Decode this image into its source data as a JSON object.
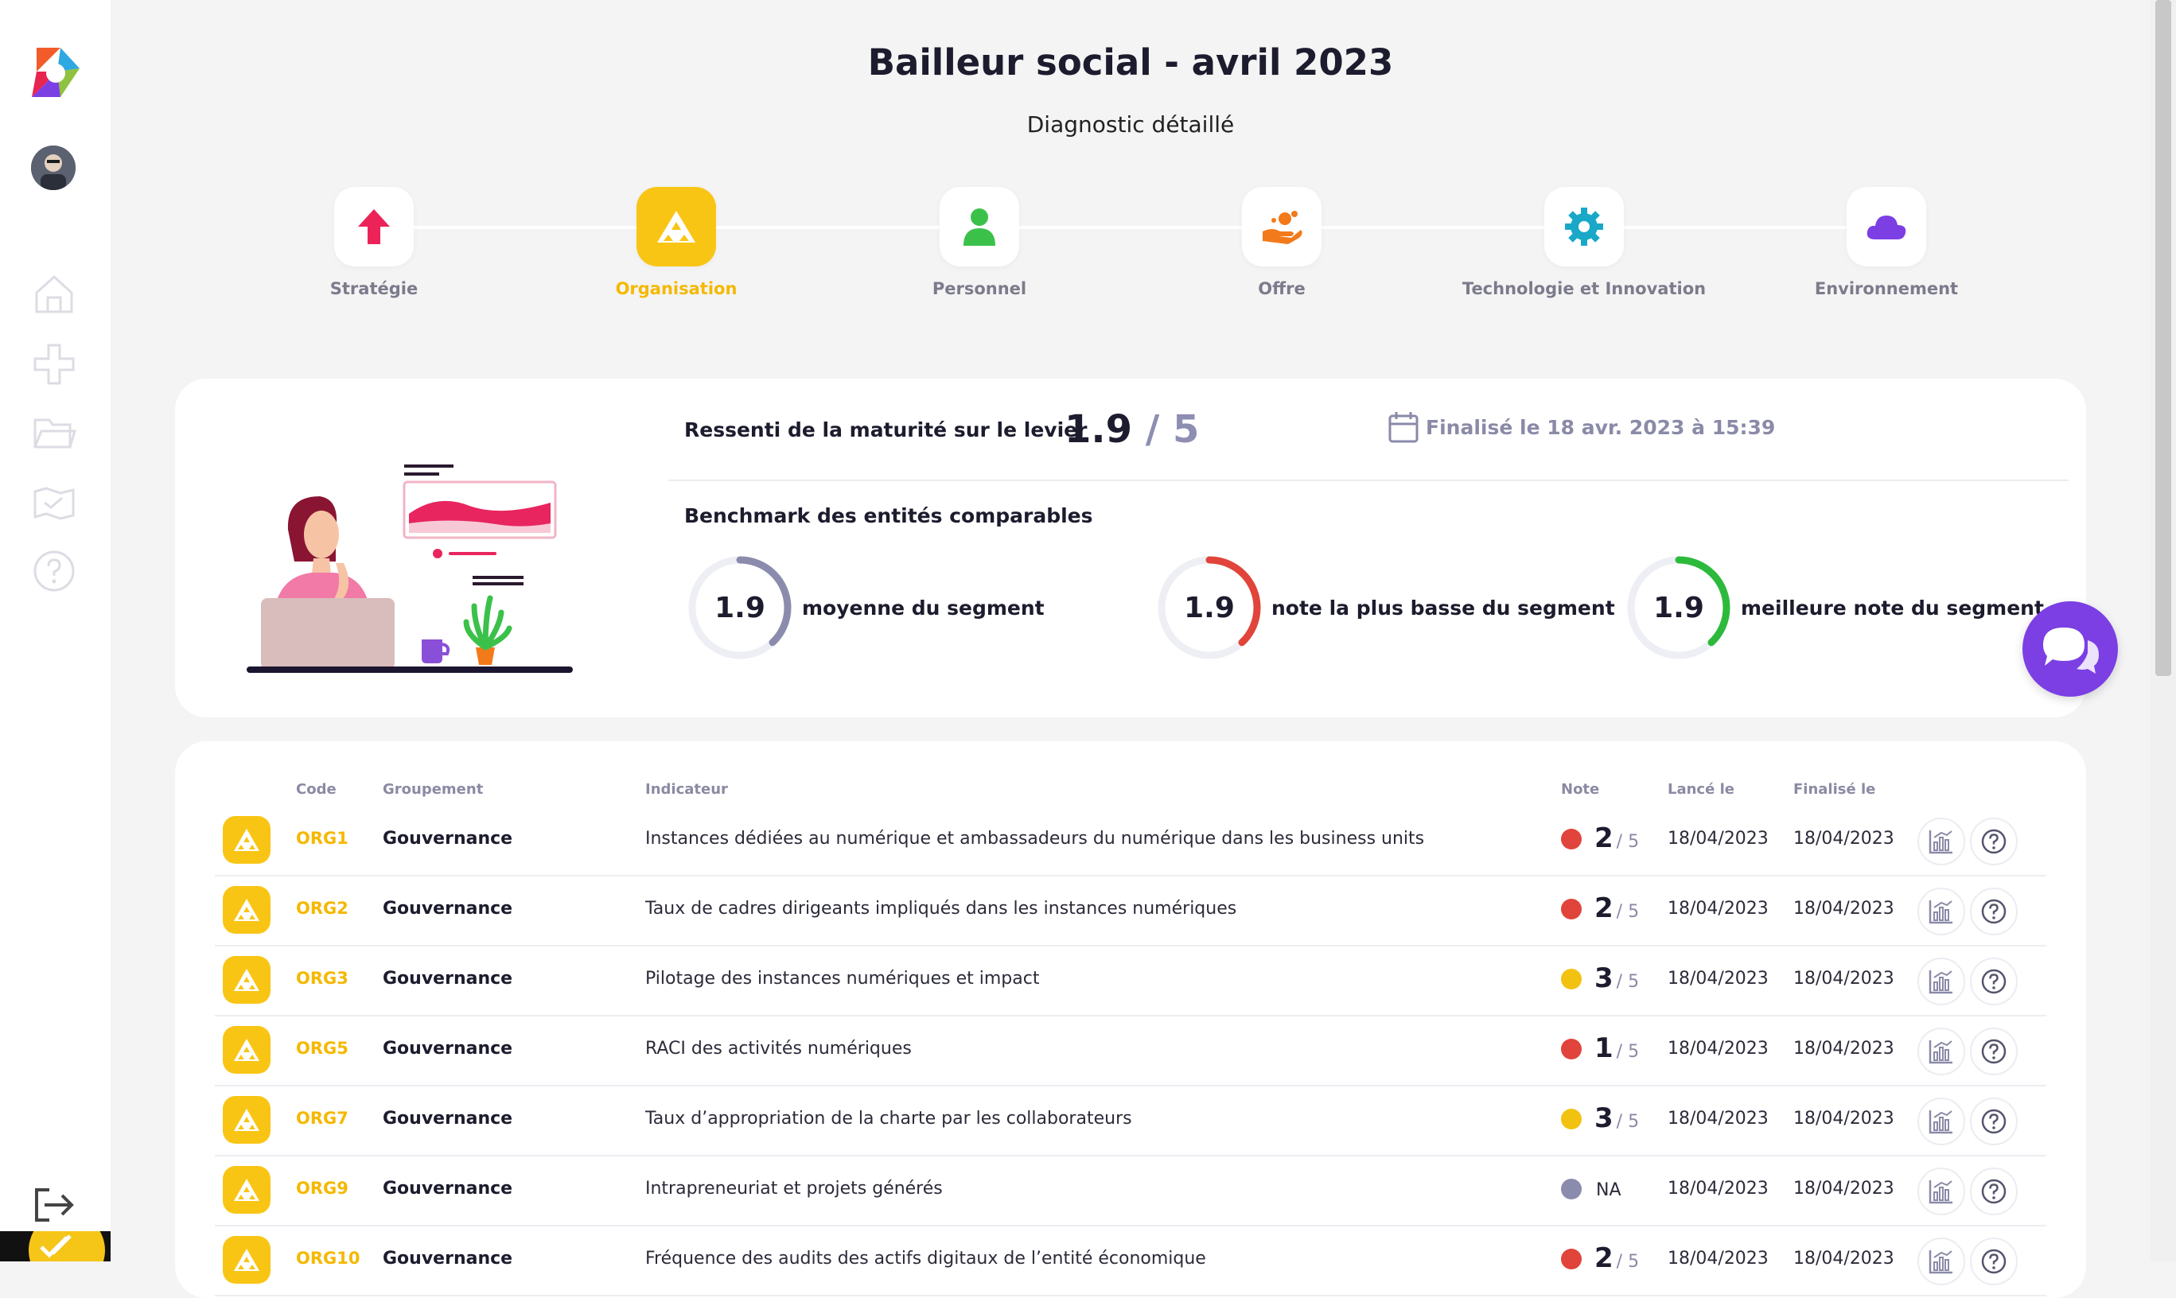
{
  "header": {
    "title": "Bailleur social - avril 2023",
    "subtitle": "Diagnostic détaillé"
  },
  "steps": [
    {
      "label": "Stratégie",
      "icon": "arrow-up-icon",
      "active": false
    },
    {
      "label": "Organisation",
      "icon": "triangle-org-icon",
      "active": true
    },
    {
      "label": "Personnel",
      "icon": "person-icon",
      "active": false
    },
    {
      "label": "Offre",
      "icon": "hand-offer-icon",
      "active": false
    },
    {
      "label": "Technologie et Innovation",
      "icon": "gear-icon",
      "active": false
    },
    {
      "label": "Environnement",
      "icon": "cloud-icon",
      "active": false
    }
  ],
  "summary": {
    "maturity_label": "Ressenti de la maturité sur le levier",
    "maturity_value": "1.9",
    "maturity_max": "/ 5",
    "finalized": "Finalisé le 18 avr. 2023 à 15:39",
    "benchmark_label": "Benchmark des entités comparables",
    "gauges": [
      {
        "value": "1.9",
        "label": "moyenne du segment",
        "color": "#8b8bad",
        "fraction": 0.38
      },
      {
        "value": "1.9",
        "label": "note la plus basse du segment",
        "color": "#e0443a",
        "fraction": 0.38
      },
      {
        "value": "1.9",
        "label": "meilleure note du segment",
        "color": "#2dba3c",
        "fraction": 0.38
      }
    ]
  },
  "table": {
    "headers": {
      "code": "Code",
      "group": "Groupement",
      "indicator": "Indicateur",
      "note": "Note",
      "launched": "Lancé le",
      "finalized": "Finalisé le"
    },
    "rows": [
      {
        "code": "ORG1",
        "group": "Gouvernance",
        "indicator": "Instances dédiées au numérique et ambassadeurs du numérique dans les business units",
        "note": "2",
        "note_max": "/ 5",
        "dot_color": "#e0443a",
        "launched": "18/04/2023",
        "finalized": "18/04/2023"
      },
      {
        "code": "ORG2",
        "group": "Gouvernance",
        "indicator": "Taux de cadres dirigeants impliqués dans les instances numériques",
        "note": "2",
        "note_max": "/ 5",
        "dot_color": "#e0443a",
        "launched": "18/04/2023",
        "finalized": "18/04/2023"
      },
      {
        "code": "ORG3",
        "group": "Gouvernance",
        "indicator": "Pilotage des instances numériques et impact",
        "note": "3",
        "note_max": "/ 5",
        "dot_color": "#f2c211",
        "launched": "18/04/2023",
        "finalized": "18/04/2023"
      },
      {
        "code": "ORG5",
        "group": "Gouvernance",
        "indicator": "RACI des activités numériques",
        "note": "1",
        "note_max": "/ 5",
        "dot_color": "#e0443a",
        "launched": "18/04/2023",
        "finalized": "18/04/2023"
      },
      {
        "code": "ORG7",
        "group": "Gouvernance",
        "indicator": "Taux d’appropriation de la charte par les collaborateurs",
        "note": "3",
        "note_max": "/ 5",
        "dot_color": "#f2c211",
        "launched": "18/04/2023",
        "finalized": "18/04/2023"
      },
      {
        "code": "ORG9",
        "group": "Gouvernance",
        "indicator": "Intrapreneuriat et projets générés",
        "note": "NA",
        "note_max": "",
        "dot_color": "#8b8bad",
        "launched": "18/04/2023",
        "finalized": "18/04/2023"
      },
      {
        "code": "ORG10",
        "group": "Gouvernance",
        "indicator": "Fréquence des audits des actifs digitaux de l’entité économique",
        "note": "2",
        "note_max": "/ 5",
        "dot_color": "#e0443a",
        "launched": "18/04/2023",
        "finalized": "18/04/2023"
      }
    ]
  },
  "sidebar": {
    "icons": [
      "home-icon",
      "plus-cross-icon",
      "folder-icon",
      "map-icon",
      "help-icon",
      "logout-icon"
    ]
  }
}
